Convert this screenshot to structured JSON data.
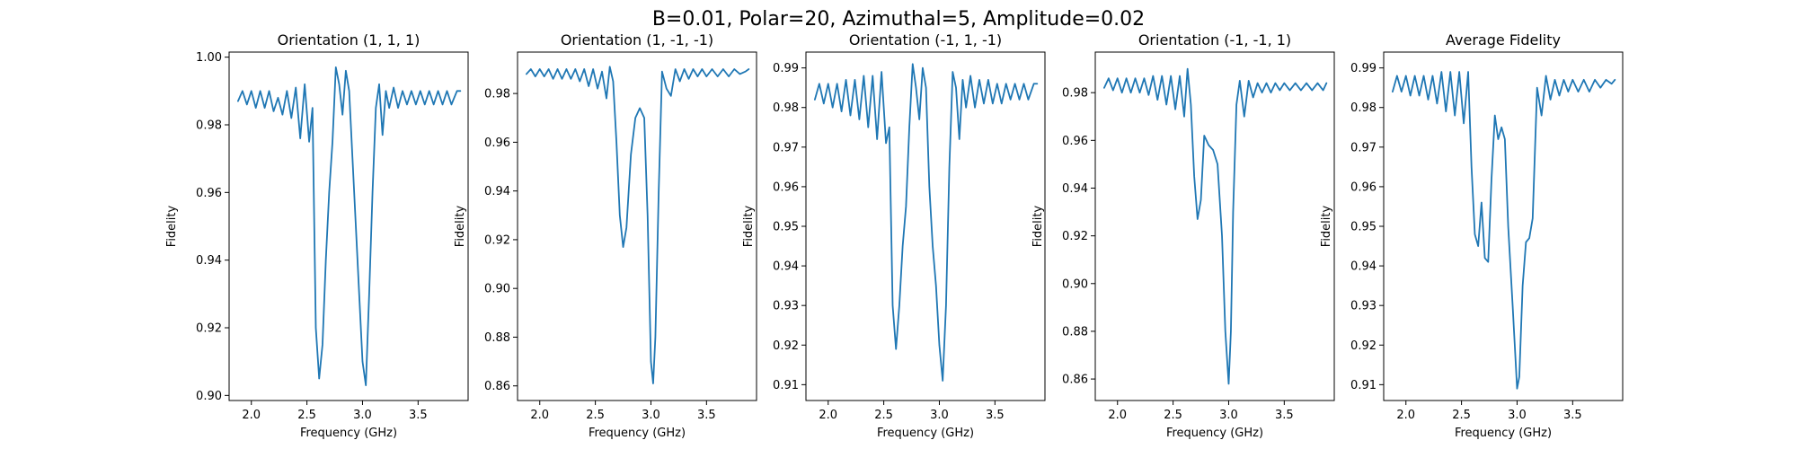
{
  "figure": {
    "suptitle": "B=0.01, Polar=20, Azimuthal=5, Amplitude=0.02"
  },
  "colors": {
    "line": "#1f77b4"
  },
  "chart_data": [
    {
      "type": "line",
      "title": "Orientation (1, 1, 1)",
      "xlabel": "Frequency (GHz)",
      "ylabel": "Fidelity",
      "xlim": [
        1.8,
        3.95
      ],
      "ylim": [
        0.8985,
        1.0015
      ],
      "xticks": [
        2.0,
        2.5,
        3.0,
        3.5
      ],
      "xtick_labels": [
        "2.0",
        "2.5",
        "3.0",
        "3.5"
      ],
      "yticks": [
        0.9,
        0.92,
        0.94,
        0.96,
        0.98,
        1.0
      ],
      "ytick_labels": [
        "0.90",
        "0.92",
        "0.94",
        "0.96",
        "0.98",
        "1.00"
      ],
      "grid": false,
      "series": [
        {
          "x": [
            1.88,
            1.92,
            1.96,
            2.0,
            2.04,
            2.08,
            2.12,
            2.16,
            2.2,
            2.24,
            2.28,
            2.32,
            2.36,
            2.4,
            2.44,
            2.48,
            2.52,
            2.55,
            2.58,
            2.61,
            2.64,
            2.67,
            2.7,
            2.73,
            2.76,
            2.79,
            2.82,
            2.85,
            2.88,
            2.91,
            2.94,
            2.97,
            3.0,
            3.03,
            3.06,
            3.09,
            3.12,
            3.15,
            3.18,
            3.21,
            3.24,
            3.28,
            3.32,
            3.36,
            3.4,
            3.44,
            3.48,
            3.52,
            3.56,
            3.6,
            3.64,
            3.68,
            3.72,
            3.76,
            3.8,
            3.85,
            3.88
          ],
          "y": [
            0.987,
            0.99,
            0.986,
            0.99,
            0.985,
            0.99,
            0.985,
            0.99,
            0.984,
            0.988,
            0.983,
            0.99,
            0.982,
            0.991,
            0.976,
            0.992,
            0.975,
            0.985,
            0.92,
            0.905,
            0.915,
            0.94,
            0.96,
            0.975,
            0.997,
            0.992,
            0.983,
            0.996,
            0.99,
            0.97,
            0.95,
            0.93,
            0.91,
            0.903,
            0.93,
            0.96,
            0.985,
            0.992,
            0.977,
            0.99,
            0.985,
            0.991,
            0.985,
            0.99,
            0.986,
            0.99,
            0.986,
            0.99,
            0.986,
            0.99,
            0.986,
            0.99,
            0.986,
            0.99,
            0.986,
            0.99,
            0.99
          ]
        }
      ]
    },
    {
      "type": "line",
      "title": "Orientation (1, -1, -1)",
      "xlabel": "Frequency (GHz)",
      "ylabel": "Fidelity",
      "xlim": [
        1.8,
        3.95
      ],
      "ylim": [
        0.854,
        0.997
      ],
      "xticks": [
        2.0,
        2.5,
        3.0,
        3.5
      ],
      "xtick_labels": [
        "2.0",
        "2.5",
        "3.0",
        "3.5"
      ],
      "yticks": [
        0.86,
        0.88,
        0.9,
        0.92,
        0.94,
        0.96,
        0.98
      ],
      "ytick_labels": [
        "0.86",
        "0.88",
        "0.90",
        "0.92",
        "0.94",
        "0.96",
        "0.98"
      ],
      "grid": false,
      "series": [
        {
          "x": [
            1.88,
            1.92,
            1.96,
            2.0,
            2.04,
            2.08,
            2.12,
            2.16,
            2.2,
            2.24,
            2.28,
            2.32,
            2.36,
            2.4,
            2.44,
            2.48,
            2.52,
            2.56,
            2.6,
            2.63,
            2.66,
            2.69,
            2.72,
            2.75,
            2.78,
            2.82,
            2.86,
            2.9,
            2.94,
            2.97,
            3.0,
            3.02,
            3.04,
            3.07,
            3.1,
            3.14,
            3.18,
            3.22,
            3.26,
            3.3,
            3.34,
            3.38,
            3.42,
            3.46,
            3.5,
            3.55,
            3.6,
            3.65,
            3.7,
            3.75,
            3.8,
            3.85,
            3.88
          ],
          "y": [
            0.988,
            0.99,
            0.987,
            0.99,
            0.987,
            0.99,
            0.986,
            0.99,
            0.986,
            0.99,
            0.986,
            0.99,
            0.985,
            0.99,
            0.983,
            0.99,
            0.982,
            0.989,
            0.978,
            0.991,
            0.985,
            0.96,
            0.93,
            0.917,
            0.925,
            0.955,
            0.97,
            0.974,
            0.97,
            0.93,
            0.87,
            0.861,
            0.88,
            0.94,
            0.989,
            0.982,
            0.979,
            0.99,
            0.985,
            0.99,
            0.986,
            0.99,
            0.987,
            0.99,
            0.987,
            0.99,
            0.987,
            0.99,
            0.987,
            0.99,
            0.988,
            0.989,
            0.99
          ]
        }
      ]
    },
    {
      "type": "line",
      "title": "Orientation (-1, 1, -1)",
      "xlabel": "Frequency (GHz)",
      "ylabel": "Fidelity",
      "xlim": [
        1.8,
        3.95
      ],
      "ylim": [
        0.906,
        0.994
      ],
      "xticks": [
        2.0,
        2.5,
        3.0,
        3.5
      ],
      "xtick_labels": [
        "2.0",
        "2.5",
        "3.0",
        "3.5"
      ],
      "yticks": [
        0.91,
        0.92,
        0.93,
        0.94,
        0.95,
        0.96,
        0.97,
        0.98,
        0.99
      ],
      "ytick_labels": [
        "0.91",
        "0.92",
        "0.93",
        "0.94",
        "0.95",
        "0.96",
        "0.97",
        "0.98",
        "0.99"
      ],
      "grid": false,
      "series": [
        {
          "x": [
            1.88,
            1.92,
            1.96,
            2.0,
            2.04,
            2.08,
            2.12,
            2.16,
            2.2,
            2.24,
            2.28,
            2.32,
            2.36,
            2.4,
            2.44,
            2.48,
            2.52,
            2.55,
            2.58,
            2.61,
            2.64,
            2.67,
            2.7,
            2.73,
            2.76,
            2.79,
            2.82,
            2.85,
            2.88,
            2.91,
            2.94,
            2.97,
            3.0,
            3.03,
            3.06,
            3.09,
            3.12,
            3.15,
            3.18,
            3.21,
            3.24,
            3.28,
            3.32,
            3.36,
            3.4,
            3.44,
            3.48,
            3.52,
            3.56,
            3.6,
            3.64,
            3.68,
            3.72,
            3.76,
            3.8,
            3.85,
            3.88
          ],
          "y": [
            0.982,
            0.986,
            0.981,
            0.986,
            0.98,
            0.986,
            0.979,
            0.987,
            0.978,
            0.987,
            0.977,
            0.988,
            0.975,
            0.988,
            0.972,
            0.989,
            0.971,
            0.975,
            0.93,
            0.919,
            0.93,
            0.945,
            0.955,
            0.975,
            0.991,
            0.985,
            0.977,
            0.99,
            0.985,
            0.96,
            0.945,
            0.935,
            0.92,
            0.911,
            0.93,
            0.965,
            0.989,
            0.985,
            0.972,
            0.987,
            0.98,
            0.988,
            0.98,
            0.987,
            0.981,
            0.987,
            0.981,
            0.986,
            0.981,
            0.986,
            0.982,
            0.986,
            0.982,
            0.986,
            0.982,
            0.986,
            0.986
          ]
        }
      ]
    },
    {
      "type": "line",
      "title": "Orientation (-1, -1, 1)",
      "xlabel": "Frequency (GHz)",
      "ylabel": "Fidelity",
      "xlim": [
        1.8,
        3.95
      ],
      "ylim": [
        0.851,
        0.997
      ],
      "xticks": [
        2.0,
        2.5,
        3.0,
        3.5
      ],
      "xtick_labels": [
        "2.0",
        "2.5",
        "3.0",
        "3.5"
      ],
      "yticks": [
        0.86,
        0.88,
        0.9,
        0.92,
        0.94,
        0.96,
        0.98
      ],
      "ytick_labels": [
        "0.86",
        "0.88",
        "0.90",
        "0.92",
        "0.94",
        "0.96",
        "0.98"
      ],
      "grid": false,
      "series": [
        {
          "x": [
            1.88,
            1.92,
            1.96,
            2.0,
            2.04,
            2.08,
            2.12,
            2.16,
            2.2,
            2.24,
            2.28,
            2.32,
            2.36,
            2.4,
            2.44,
            2.48,
            2.52,
            2.56,
            2.6,
            2.63,
            2.66,
            2.69,
            2.72,
            2.75,
            2.78,
            2.82,
            2.86,
            2.9,
            2.94,
            2.97,
            3.0,
            3.02,
            3.04,
            3.07,
            3.1,
            3.14,
            3.18,
            3.22,
            3.26,
            3.3,
            3.34,
            3.38,
            3.42,
            3.46,
            3.5,
            3.55,
            3.6,
            3.65,
            3.7,
            3.75,
            3.8,
            3.85,
            3.88
          ],
          "y": [
            0.982,
            0.986,
            0.981,
            0.986,
            0.98,
            0.986,
            0.98,
            0.986,
            0.98,
            0.986,
            0.979,
            0.987,
            0.977,
            0.987,
            0.975,
            0.987,
            0.973,
            0.987,
            0.97,
            0.99,
            0.975,
            0.945,
            0.927,
            0.935,
            0.962,
            0.958,
            0.956,
            0.95,
            0.92,
            0.88,
            0.858,
            0.88,
            0.93,
            0.975,
            0.985,
            0.97,
            0.985,
            0.978,
            0.984,
            0.98,
            0.984,
            0.98,
            0.984,
            0.981,
            0.984,
            0.981,
            0.984,
            0.981,
            0.984,
            0.981,
            0.984,
            0.981,
            0.984
          ]
        }
      ]
    },
    {
      "type": "line",
      "title": "Average Fidelity",
      "xlabel": "Frequency (GHz)",
      "ylabel": "Fidelity",
      "xlim": [
        1.8,
        3.95
      ],
      "ylim": [
        0.906,
        0.994
      ],
      "xticks": [
        2.0,
        2.5,
        3.0,
        3.5
      ],
      "xtick_labels": [
        "2.0",
        "2.5",
        "3.0",
        "3.5"
      ],
      "yticks": [
        0.91,
        0.92,
        0.93,
        0.94,
        0.95,
        0.96,
        0.97,
        0.98,
        0.99
      ],
      "ytick_labels": [
        "0.91",
        "0.92",
        "0.93",
        "0.94",
        "0.95",
        "0.96",
        "0.97",
        "0.98",
        "0.99"
      ],
      "grid": false,
      "series": [
        {
          "x": [
            1.88,
            1.92,
            1.96,
            2.0,
            2.04,
            2.08,
            2.12,
            2.16,
            2.2,
            2.24,
            2.28,
            2.32,
            2.36,
            2.4,
            2.44,
            2.48,
            2.52,
            2.56,
            2.59,
            2.62,
            2.65,
            2.68,
            2.71,
            2.74,
            2.77,
            2.8,
            2.83,
            2.86,
            2.89,
            2.92,
            2.96,
            3.0,
            3.02,
            3.05,
            3.08,
            3.11,
            3.14,
            3.18,
            3.22,
            3.26,
            3.3,
            3.34,
            3.38,
            3.42,
            3.46,
            3.5,
            3.55,
            3.6,
            3.65,
            3.7,
            3.75,
            3.8,
            3.85,
            3.88
          ],
          "y": [
            0.984,
            0.988,
            0.984,
            0.988,
            0.983,
            0.988,
            0.983,
            0.988,
            0.982,
            0.988,
            0.981,
            0.989,
            0.979,
            0.989,
            0.978,
            0.989,
            0.976,
            0.989,
            0.965,
            0.948,
            0.945,
            0.956,
            0.942,
            0.941,
            0.962,
            0.978,
            0.972,
            0.975,
            0.972,
            0.95,
            0.93,
            0.909,
            0.912,
            0.935,
            0.946,
            0.947,
            0.952,
            0.985,
            0.978,
            0.988,
            0.982,
            0.987,
            0.983,
            0.987,
            0.984,
            0.987,
            0.984,
            0.987,
            0.984,
            0.987,
            0.985,
            0.987,
            0.986,
            0.987
          ]
        }
      ]
    }
  ]
}
